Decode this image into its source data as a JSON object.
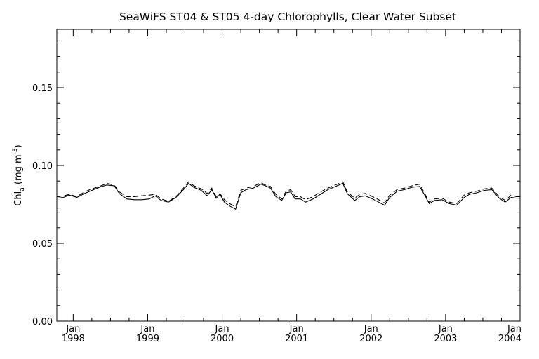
{
  "chart_data": {
    "type": "line",
    "title": "SeaWiFS ST04 & ST05 4-day Chlorophylls, Clear Water Subset",
    "ylabel": {
      "main": "Chl",
      "sub": "a",
      "unit_open": " (mg m",
      "unit_sup": "-3",
      "unit_close": ")"
    },
    "xlabel": "",
    "xlim": [
      1997.78,
      2004.0
    ],
    "ylim": [
      0.0,
      0.1
    ],
    "y_ticks": [
      0.0,
      0.05,
      0.1,
      0.15
    ],
    "y_tick_labels": [
      "0.00",
      "0.05",
      "0.10",
      "0.15"
    ],
    "x_ticks": [
      {
        "value": 1998,
        "month": "Jan",
        "year": "1998"
      },
      {
        "value": 1999,
        "month": "Jan",
        "year": "1999"
      },
      {
        "value": 2000,
        "month": "Jan",
        "year": "2000"
      },
      {
        "value": 2001,
        "month": "Jan",
        "year": "2001"
      },
      {
        "value": 2002,
        "month": "Jan",
        "year": "2002"
      },
      {
        "value": 2003,
        "month": "Jan",
        "year": "2003"
      },
      {
        "value": 2004,
        "month": "Jan",
        "year": "2004"
      }
    ],
    "grid": false,
    "series": [
      {
        "style": "solid",
        "color": "#000000",
        "x": [
          1997.78,
          1997.87,
          1997.95,
          1998.05,
          1998.15,
          1998.25,
          1998.35,
          1998.45,
          1998.55,
          1998.62,
          1998.72,
          1998.82,
          1998.92,
          1999.02,
          1999.1,
          1999.18,
          1999.28,
          1999.38,
          1999.48,
          1999.55,
          1999.62,
          1999.72,
          1999.8,
          1999.86,
          1999.92,
          1999.97,
          2000.03,
          2000.1,
          2000.18,
          2000.25,
          2000.32,
          2000.42,
          2000.52,
          2000.58,
          2000.65,
          2000.72,
          2000.8,
          2000.86,
          2000.92,
          2000.98,
          2001.05,
          2001.12,
          2001.22,
          2001.32,
          2001.42,
          2001.52,
          2001.62,
          2001.68,
          2001.78,
          2001.85,
          2001.92,
          2002.02,
          2002.1,
          2002.18,
          2002.25,
          2002.35,
          2002.45,
          2002.55,
          2002.65,
          2002.72,
          2002.78,
          2002.85,
          2002.95,
          2003.05,
          2003.15,
          2003.25,
          2003.32,
          2003.42,
          2003.52,
          2003.62,
          2003.72,
          2003.8,
          2003.88,
          2003.95,
          2004.0
        ],
        "y": [
          0.079,
          0.0795,
          0.081,
          0.0795,
          0.082,
          0.084,
          0.086,
          0.0875,
          0.087,
          0.082,
          0.0785,
          0.078,
          0.078,
          0.0785,
          0.0805,
          0.0775,
          0.0765,
          0.0795,
          0.0845,
          0.0885,
          0.086,
          0.084,
          0.0805,
          0.0845,
          0.079,
          0.0815,
          0.0765,
          0.074,
          0.072,
          0.0825,
          0.0845,
          0.0855,
          0.088,
          0.087,
          0.0855,
          0.08,
          0.0775,
          0.0825,
          0.083,
          0.0785,
          0.0785,
          0.0765,
          0.0785,
          0.0815,
          0.0845,
          0.0865,
          0.0885,
          0.082,
          0.0775,
          0.08,
          0.0805,
          0.0785,
          0.0765,
          0.0745,
          0.0795,
          0.0835,
          0.0845,
          0.086,
          0.0865,
          0.081,
          0.0755,
          0.0775,
          0.078,
          0.0755,
          0.0745,
          0.0795,
          0.0815,
          0.0825,
          0.084,
          0.0845,
          0.079,
          0.0765,
          0.0795,
          0.079,
          0.079
        ]
      },
      {
        "style": "dashed",
        "color": "#000000",
        "x": [
          1997.78,
          1997.87,
          1997.95,
          1998.05,
          1998.15,
          1998.25,
          1998.35,
          1998.45,
          1998.55,
          1998.62,
          1998.72,
          1998.82,
          1998.92,
          1999.02,
          1999.1,
          1999.18,
          1999.28,
          1999.38,
          1999.48,
          1999.55,
          1999.62,
          1999.72,
          1999.8,
          1999.86,
          1999.92,
          1999.97,
          2000.03,
          2000.1,
          2000.18,
          2000.25,
          2000.32,
          2000.42,
          2000.52,
          2000.58,
          2000.65,
          2000.72,
          2000.8,
          2000.86,
          2000.92,
          2000.98,
          2001.05,
          2001.12,
          2001.22,
          2001.32,
          2001.42,
          2001.52,
          2001.62,
          2001.68,
          2001.78,
          2001.85,
          2001.92,
          2002.02,
          2002.1,
          2002.18,
          2002.25,
          2002.35,
          2002.45,
          2002.55,
          2002.65,
          2002.72,
          2002.78,
          2002.85,
          2002.95,
          2003.05,
          2003.15,
          2003.25,
          2003.32,
          2003.42,
          2003.52,
          2003.62,
          2003.72,
          2003.8,
          2003.88,
          2003.95,
          2004.0
        ],
        "y": [
          0.08,
          0.0805,
          0.0815,
          0.08,
          0.083,
          0.085,
          0.0865,
          0.0885,
          0.0875,
          0.083,
          0.08,
          0.08,
          0.0805,
          0.081,
          0.0815,
          0.0785,
          0.077,
          0.08,
          0.0855,
          0.0895,
          0.087,
          0.085,
          0.082,
          0.0855,
          0.08,
          0.082,
          0.078,
          0.0755,
          0.0735,
          0.084,
          0.0855,
          0.0865,
          0.089,
          0.0875,
          0.0865,
          0.0815,
          0.0785,
          0.0835,
          0.0845,
          0.08,
          0.08,
          0.078,
          0.08,
          0.083,
          0.0855,
          0.0875,
          0.0895,
          0.083,
          0.079,
          0.0815,
          0.082,
          0.08,
          0.078,
          0.076,
          0.081,
          0.0845,
          0.0855,
          0.087,
          0.088,
          0.082,
          0.0765,
          0.0785,
          0.079,
          0.0765,
          0.0755,
          0.081,
          0.0825,
          0.0835,
          0.085,
          0.0855,
          0.08,
          0.0775,
          0.081,
          0.08,
          0.08
        ]
      }
    ]
  }
}
